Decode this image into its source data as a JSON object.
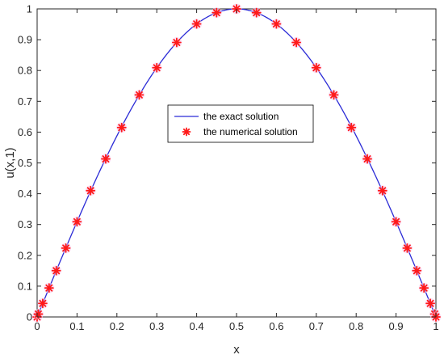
{
  "chart_data": {
    "type": "line",
    "xlabel": "x",
    "ylabel": "u(x,1)",
    "xlim": [
      0,
      1
    ],
    "ylim": [
      0,
      1
    ],
    "x_ticks": [
      "0",
      "0.1",
      "0.2",
      "0.3",
      "0.4",
      "0.5",
      "0.6",
      "0.7",
      "0.8",
      "0.9",
      "1"
    ],
    "y_ticks": [
      "0",
      "0.1",
      "0.2",
      "0.3",
      "0.4",
      "0.5",
      "0.6",
      "0.7",
      "0.8",
      "0.9",
      "1"
    ],
    "grid": false,
    "legend_position": "center",
    "series": [
      {
        "name": "the exact solution",
        "style": "line",
        "color": "#2b2bd6",
        "function": "sin(pi*x)"
      },
      {
        "name": "the numerical solution",
        "style": "marker-asterisk",
        "color": "#ff1a1a",
        "x": [
          0,
          0.003,
          0.014,
          0.03,
          0.048,
          0.072,
          0.1,
          0.134,
          0.172,
          0.212,
          0.256,
          0.3,
          0.35,
          0.4,
          0.45,
          0.5,
          0.55,
          0.6,
          0.65,
          0.7,
          0.744,
          0.788,
          0.828,
          0.866,
          0.9,
          0.928,
          0.952,
          0.97,
          0.986,
          0.997,
          1
        ],
        "y": [
          0.0,
          0.0094,
          0.044,
          0.0941,
          0.1502,
          0.2235,
          0.309,
          0.41,
          0.513,
          0.6149,
          0.7208,
          0.809,
          0.891,
          0.9511,
          0.9877,
          1.0,
          0.9877,
          0.9511,
          0.891,
          0.809,
          0.7208,
          0.6149,
          0.513,
          0.41,
          0.309,
          0.2235,
          0.1502,
          0.0941,
          0.044,
          0.0094,
          0.0
        ]
      }
    ]
  }
}
